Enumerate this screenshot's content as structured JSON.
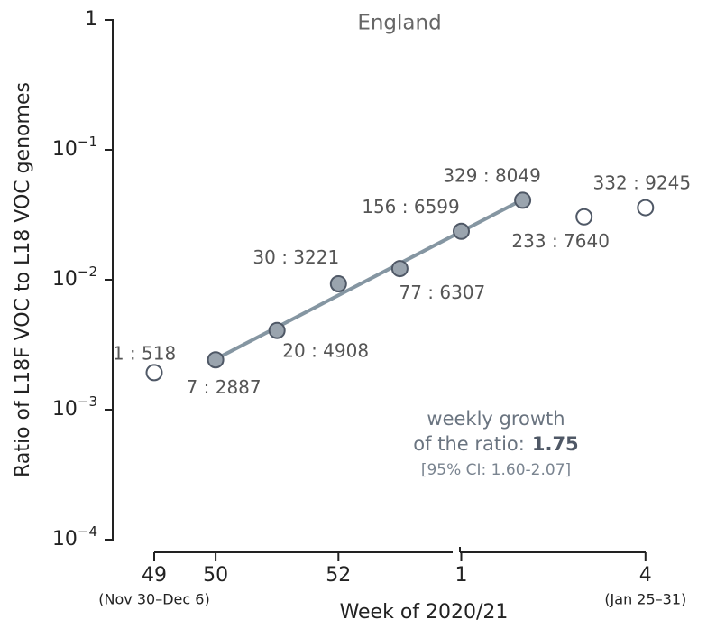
{
  "chart_data": {
    "type": "scatter",
    "title": "England",
    "x_label": "Week of 2020/21",
    "y_label": "Ratio of L18F VOC to L18 VOC genomes",
    "log_y": true,
    "categories": [
      "49",
      "50",
      null,
      "52",
      null,
      "1",
      null,
      null,
      "4"
    ],
    "x_sublabels": [
      "(Nov 30–Dec 6)",
      null,
      null,
      null,
      null,
      null,
      null,
      null,
      "(Jan 25–31)"
    ],
    "values": [
      0.00193,
      0.00242,
      0.00407,
      0.00931,
      0.0122,
      0.0236,
      0.0409,
      0.0305,
      0.0359
    ],
    "value_labels": [
      "1 : 518",
      "7 : 2887",
      "20 : 4908",
      "30 : 3221",
      "77 : 6307",
      "156 : 6599",
      "329 : 8049",
      "233 : 7640",
      "332 : 9245"
    ],
    "marker_filled": [
      false,
      true,
      true,
      true,
      true,
      true,
      true,
      false,
      false
    ],
    "fit_values": [
      null,
      0.00245,
      null,
      null,
      null,
      null,
      0.0414,
      null,
      null
    ],
    "color": "#9aa4ae",
    "edge_color": "#4f5866",
    "fit_color": "#8596a2",
    "ylim": [
      0.0001,
      1
    ],
    "yticks": [
      {
        "value": 0.0001,
        "label": "10",
        "exponent": "−4"
      },
      {
        "value": 0.001,
        "label": "10",
        "exponent": "−3"
      },
      {
        "value": 0.01,
        "label": "10",
        "exponent": "−2"
      },
      {
        "value": 0.1,
        "label": "10",
        "exponent": "−1"
      },
      1
    ],
    "annotation": {
      "lines": [
        "weekly growth",
        "of the ratio:"
      ],
      "growth": "1.75",
      "ci": "[95% CI: 1.60-2.07]"
    }
  }
}
